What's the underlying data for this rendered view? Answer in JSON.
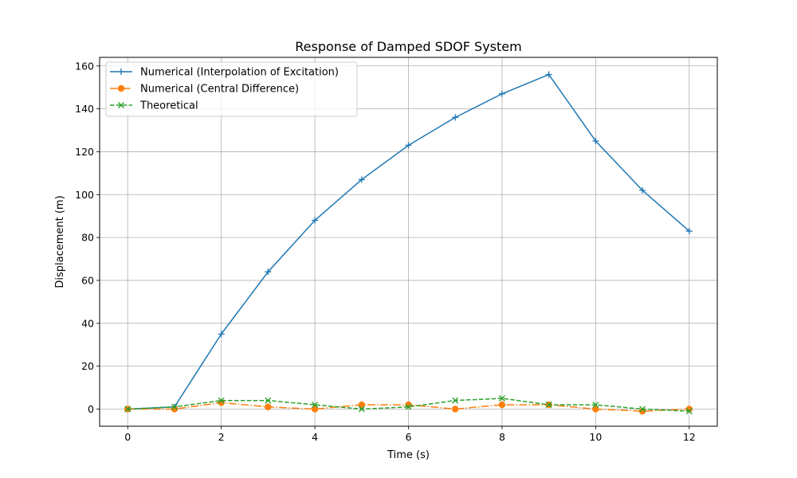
{
  "chart_data": {
    "type": "line",
    "title": "Response of Damped SDOF System",
    "xlabel": "Time (s)",
    "ylabel": "Displacement (m)",
    "xlim": [
      -0.6,
      12.6
    ],
    "ylim": [
      -8,
      164
    ],
    "xticks": [
      0,
      2,
      4,
      6,
      8,
      10,
      12
    ],
    "yticks": [
      0,
      20,
      40,
      60,
      80,
      100,
      120,
      140,
      160
    ],
    "grid": true,
    "legend_position": "top-left",
    "x": [
      0,
      1,
      2,
      3,
      4,
      5,
      6,
      7,
      8,
      9,
      10,
      11,
      12
    ],
    "series": [
      {
        "name": "Numerical (Interpolation of Excitation)",
        "color": "#1f77b4",
        "line_style": "solid",
        "marker": "plus",
        "values": [
          0,
          1,
          35,
          64,
          88,
          107,
          123,
          136,
          147,
          156,
          125,
          102,
          83
        ]
      },
      {
        "name": "Numerical (Central Difference)",
        "color": "#ff7f0e",
        "line_style": "dashdot",
        "marker": "circle",
        "values": [
          0,
          0,
          3,
          1,
          0,
          2,
          2,
          0,
          2,
          2,
          0,
          -1,
          0
        ]
      },
      {
        "name": "Theoretical",
        "color": "#2ca02c",
        "line_style": "dashed",
        "marker": "x",
        "values": [
          0,
          1,
          4,
          4,
          2,
          0,
          1,
          4,
          5,
          2,
          2,
          0,
          -1
        ]
      }
    ]
  }
}
